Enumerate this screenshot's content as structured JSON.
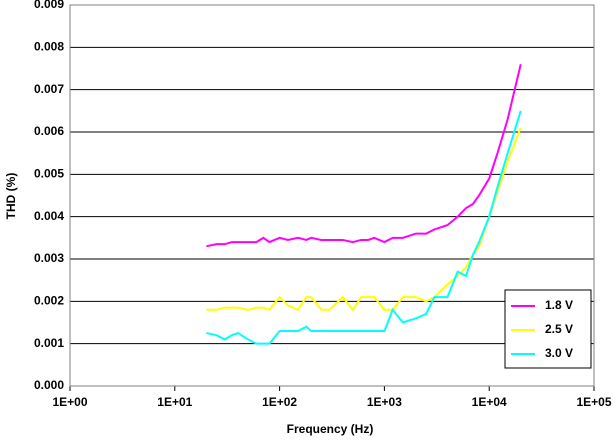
{
  "chart_data": {
    "type": "line",
    "xlabel": "Frequency (Hz)",
    "ylabel": "THD (%)",
    "xscale": "log",
    "grid": true,
    "legend": "lower right",
    "x": [
      20,
      25,
      30,
      35,
      40,
      50,
      60,
      70,
      80,
      100,
      120,
      150,
      180,
      200,
      250,
      300,
      400,
      500,
      600,
      700,
      800,
      1000,
      1200,
      1500,
      2000,
      2500,
      3000,
      4000,
      5000,
      6000,
      7000,
      8000,
      10000,
      12000,
      15000,
      20000
    ],
    "series": [
      {
        "name": "1.8 V",
        "color": "#ff00ff",
        "values": [
          0.0033,
          0.00335,
          0.00335,
          0.0034,
          0.0034,
          0.0034,
          0.0034,
          0.0035,
          0.0034,
          0.0035,
          0.00345,
          0.0035,
          0.00345,
          0.0035,
          0.00345,
          0.00345,
          0.00345,
          0.0034,
          0.00345,
          0.00345,
          0.0035,
          0.0034,
          0.0035,
          0.0035,
          0.0036,
          0.0036,
          0.0037,
          0.0038,
          0.004,
          0.0042,
          0.0043,
          0.0045,
          0.0049,
          0.0055,
          0.0063,
          0.0076
        ]
      },
      {
        "name": "2.5 V",
        "color": "#ffff00",
        "values": [
          0.0018,
          0.0018,
          0.00185,
          0.00185,
          0.00185,
          0.0018,
          0.00185,
          0.00185,
          0.0018,
          0.0021,
          0.0019,
          0.0018,
          0.0021,
          0.0021,
          0.0018,
          0.0018,
          0.0021,
          0.0018,
          0.0021,
          0.0021,
          0.0021,
          0.0018,
          0.0018,
          0.0021,
          0.0021,
          0.002,
          0.0021,
          0.0024,
          0.0026,
          0.0028,
          0.0031,
          0.0033,
          0.004,
          0.0046,
          0.0053,
          0.0061
        ]
      },
      {
        "name": "3.0 V",
        "color": "#00ffff",
        "values": [
          0.00125,
          0.0012,
          0.0011,
          0.0012,
          0.00125,
          0.0011,
          0.001,
          0.001,
          0.001,
          0.0013,
          0.0013,
          0.0013,
          0.0014,
          0.0013,
          0.0013,
          0.0013,
          0.0013,
          0.0013,
          0.0013,
          0.0013,
          0.0013,
          0.0013,
          0.0018,
          0.0015,
          0.0016,
          0.0017,
          0.0021,
          0.0021,
          0.0027,
          0.0026,
          0.0031,
          0.0034,
          0.004,
          0.0047,
          0.0055,
          0.0065
        ]
      }
    ],
    "xlim": [
      1,
      100000
    ],
    "xticks": [
      {
        "value": 1,
        "label": "1E+00"
      },
      {
        "value": 10,
        "label": "1E+01"
      },
      {
        "value": 100,
        "label": "1E+02"
      },
      {
        "value": 1000,
        "label": "1E+03"
      },
      {
        "value": 10000,
        "label": "1E+04"
      },
      {
        "value": 100000,
        "label": "1E+05"
      }
    ],
    "ylim": [
      0,
      0.009
    ],
    "yticks": [
      {
        "value": 0,
        "label": "0.000"
      },
      0.001,
      0.002,
      0.003,
      0.004,
      0.005,
      0.006,
      0.007,
      0.008,
      0.009
    ]
  }
}
